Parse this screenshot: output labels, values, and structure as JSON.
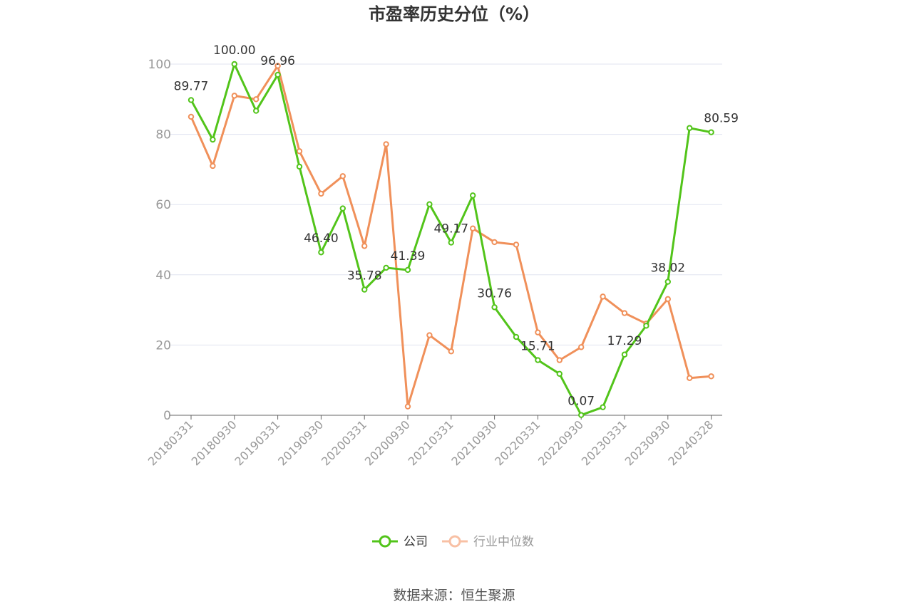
{
  "chart_data": {
    "type": "line",
    "title": "市盈率历史分位（%）",
    "xlabel": "",
    "ylabel": "",
    "ylim": [
      0,
      100
    ],
    "yticks": [
      0,
      20,
      40,
      60,
      80,
      100
    ],
    "x": [
      "20180331",
      "20180630",
      "20180930",
      "20181231",
      "20190331",
      "20190630",
      "20190930",
      "20191231",
      "20200331",
      "20200630",
      "20200930",
      "20201231",
      "20210331",
      "20210630",
      "20210930",
      "20211231",
      "20220331",
      "20220630",
      "20220930",
      "20221231",
      "20230331",
      "20230630",
      "20230930",
      "20231231",
      "20240328"
    ],
    "x_tick_labels": [
      "20180331",
      "20180930",
      "20190331",
      "20190930",
      "20200331",
      "20200930",
      "20210331",
      "20210930",
      "20220331",
      "20220930",
      "20230331",
      "20230930",
      "20240328"
    ],
    "series": [
      {
        "name": "公司",
        "color": "#52c41a",
        "values": [
          89.77,
          78.5,
          100.0,
          86.7,
          96.96,
          70.8,
          46.4,
          58.9,
          35.78,
          42.0,
          41.39,
          60.1,
          49.17,
          62.6,
          30.76,
          22.3,
          15.71,
          11.8,
          0.07,
          2.3,
          17.29,
          25.5,
          38.02,
          81.8,
          80.59
        ],
        "labels": {
          "0": "89.77",
          "2": "100.00",
          "4": "96.96",
          "6": "46.40",
          "8": "35.78",
          "10": "41.39",
          "12": "49.17",
          "14": "30.76",
          "16": "15.71",
          "18": "0.07",
          "20": "17.29",
          "22": "38.02",
          "24": "80.59"
        }
      },
      {
        "name": "行业中位数",
        "color": "#f0905a",
        "values": [
          85.0,
          71.0,
          91.0,
          90.0,
          99.5,
          75.2,
          63.1,
          68.1,
          48.2,
          77.2,
          2.5,
          22.8,
          18.2,
          53.2,
          49.3,
          48.6,
          23.6,
          15.7,
          19.4,
          33.8,
          29.1,
          26.1,
          33.1,
          10.6,
          11.1
        ]
      }
    ],
    "legend": "bottom-center",
    "grid": true
  },
  "source_text": "数据来源：恒生聚源"
}
